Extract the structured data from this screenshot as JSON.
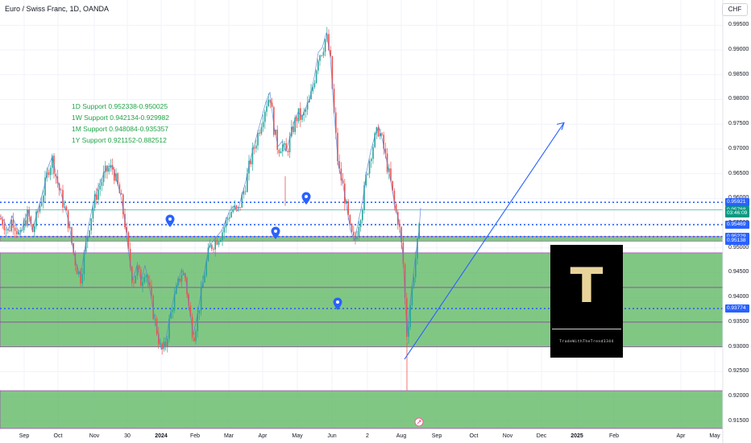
{
  "header": {
    "symbol": "Euro / Swiss Franc, 1D, OANDA",
    "currency": "CHF"
  },
  "support_notes": [
    "1D Support 0.952338-0.950025",
    "1W Support 0.942134-0.929982",
    "1M Support 0.948084-0.935357",
    "1Y Support 0.921152-0.882512"
  ],
  "logo": {
    "letter": "T",
    "tagline": "TradeWithTheTrend3344"
  },
  "price_tags": [
    {
      "label": "0.95921",
      "value": 0.95921,
      "color": "#2962ff"
    },
    {
      "label": "0.95768",
      "value": 0.95768,
      "color": "#089981"
    },
    {
      "label": "03:46:09",
      "value": 0.95695,
      "color": "#089981"
    },
    {
      "label": "0.95469",
      "value": 0.95469,
      "color": "#2962ff"
    },
    {
      "label": "0.95229",
      "value": 0.95229,
      "color": "#2962ff"
    },
    {
      "label": "0.95138",
      "value": 0.95138,
      "color": "#2962ff"
    },
    {
      "label": "0.93774",
      "value": 0.93774,
      "color": "#2962ff"
    }
  ],
  "chart_data": {
    "type": "candlestick",
    "title": "Euro / Swiss Franc, 1D, OANDA",
    "ylim": [
      0.9135,
      0.9988
    ],
    "y_ticks": [
      "0.99500",
      "0.99000",
      "0.98500",
      "0.98000",
      "0.97500",
      "0.97000",
      "0.96500",
      "0.96000",
      "0.95500",
      "0.95000",
      "0.94500",
      "0.94000",
      "0.93500",
      "0.93000",
      "0.92500",
      "0.92000",
      "0.91500"
    ],
    "x_ticks": [
      "Sep",
      "Oct",
      "Nov",
      "30",
      "2024",
      "Feb",
      "Mar",
      "Apr",
      "May",
      "Jun",
      "2",
      "Aug",
      "Sep",
      "Oct",
      "Nov",
      "Dec",
      "2025",
      "Feb",
      "Apr",
      "May"
    ],
    "price_path": [
      [
        0,
        0.956
      ],
      [
        5,
        0.955
      ],
      [
        10,
        0.953
      ],
      [
        15,
        0.956
      ],
      [
        20,
        0.954
      ],
      [
        25,
        0.952
      ],
      [
        30,
        0.955
      ],
      [
        35,
        0.957
      ],
      [
        40,
        0.953
      ],
      [
        45,
        0.956
      ],
      [
        50,
        0.959
      ],
      [
        55,
        0.962
      ],
      [
        60,
        0.966
      ],
      [
        65,
        0.968
      ],
      [
        70,
        0.964
      ],
      [
        75,
        0.961
      ],
      [
        80,
        0.958
      ],
      [
        85,
        0.955
      ],
      [
        90,
        0.95
      ],
      [
        95,
        0.946
      ],
      [
        100,
        0.944
      ],
      [
        105,
        0.949
      ],
      [
        110,
        0.954
      ],
      [
        115,
        0.958
      ],
      [
        120,
        0.961
      ],
      [
        125,
        0.963
      ],
      [
        130,
        0.965
      ],
      [
        135,
        0.966
      ],
      [
        140,
        0.966
      ],
      [
        145,
        0.963
      ],
      [
        150,
        0.96
      ],
      [
        155,
        0.955
      ],
      [
        160,
        0.948
      ],
      [
        165,
        0.943
      ],
      [
        170,
        0.946
      ],
      [
        175,
        0.943
      ],
      [
        180,
        0.946
      ],
      [
        185,
        0.942
      ],
      [
        190,
        0.937
      ],
      [
        195,
        0.933
      ],
      [
        200,
        0.929
      ],
      [
        205,
        0.93
      ],
      [
        210,
        0.935
      ],
      [
        215,
        0.939
      ],
      [
        220,
        0.942
      ],
      [
        225,
        0.945
      ],
      [
        230,
        0.944
      ],
      [
        235,
        0.937
      ],
      [
        240,
        0.932
      ],
      [
        245,
        0.936
      ],
      [
        250,
        0.941
      ],
      [
        255,
        0.946
      ],
      [
        260,
        0.95
      ],
      [
        265,
        0.951
      ],
      [
        270,
        0.952
      ],
      [
        275,
        0.953
      ],
      [
        280,
        0.955
      ],
      [
        285,
        0.957
      ],
      [
        290,
        0.958
      ],
      [
        295,
        0.957
      ],
      [
        300,
        0.96
      ],
      [
        305,
        0.963
      ],
      [
        310,
        0.967
      ],
      [
        315,
        0.97
      ],
      [
        320,
        0.973
      ],
      [
        325,
        0.976
      ],
      [
        330,
        0.979
      ],
      [
        335,
        0.981
      ],
      [
        340,
        0.974
      ],
      [
        345,
        0.97
      ],
      [
        350,
        0.971
      ],
      [
        355,
        0.969
      ],
      [
        360,
        0.972
      ],
      [
        365,
        0.975
      ],
      [
        370,
        0.977
      ],
      [
        375,
        0.976
      ],
      [
        380,
        0.978
      ],
      [
        385,
        0.98
      ],
      [
        390,
        0.984
      ],
      [
        395,
        0.989
      ],
      [
        400,
        0.99
      ],
      [
        405,
        0.993
      ],
      [
        410,
        0.988
      ],
      [
        415,
        0.976
      ],
      [
        420,
        0.966
      ],
      [
        425,
        0.963
      ],
      [
        430,
        0.958
      ],
      [
        435,
        0.953
      ],
      [
        440,
        0.951
      ],
      [
        445,
        0.955
      ],
      [
        450,
        0.959
      ],
      [
        455,
        0.965
      ],
      [
        460,
        0.969
      ],
      [
        465,
        0.972
      ],
      [
        470,
        0.974
      ],
      [
        475,
        0.971
      ],
      [
        480,
        0.967
      ],
      [
        485,
        0.963
      ],
      [
        490,
        0.958
      ],
      [
        495,
        0.955
      ],
      [
        500,
        0.948
      ],
      [
        505,
        0.932
      ],
      [
        510,
        0.94
      ],
      [
        515,
        0.947
      ],
      [
        520,
        0.953
      ],
      [
        522,
        0.9576
      ]
    ],
    "horizontal_levels": [
      {
        "value": 0.95921,
        "style": "dotted"
      },
      {
        "value": 0.95768,
        "style": "solid"
      },
      {
        "value": 0.95469,
        "style": "dotted"
      },
      {
        "value": 0.95229,
        "style": "dotted"
      },
      {
        "value": 0.93774,
        "style": "dotted"
      }
    ],
    "support_zones": [
      {
        "from": 0.95138,
        "to": 0.95229
      },
      {
        "from": 0.942,
        "to": 0.949
      },
      {
        "from": 0.935,
        "to": 0.942
      },
      {
        "from": 0.92998,
        "to": 0.935
      },
      {
        "from": 0.9135,
        "to": 0.92115
      }
    ],
    "trend_arrow": {
      "from": [
        0.9275
      ],
      "to": [
        0.9753
      ]
    }
  }
}
